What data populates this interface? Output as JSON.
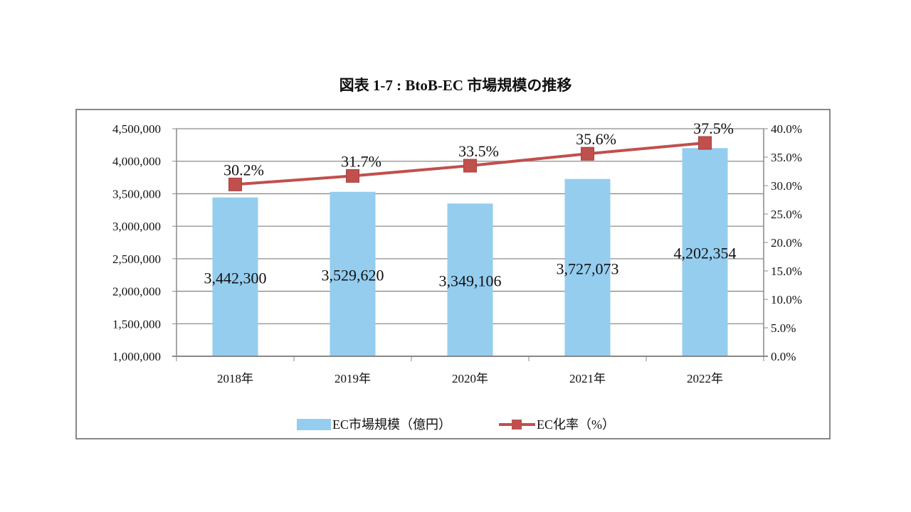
{
  "chart_data": {
    "type": "bar+line",
    "title": "図表 1-7 : BtoB-EC 市場規模の推移",
    "categories": [
      "2018年",
      "2019年",
      "2020年",
      "2021年",
      "2022年"
    ],
    "series": [
      {
        "name": "EC市場規模（億円）",
        "type": "bar",
        "axis": "left",
        "color": "#95CDEF",
        "values": [
          3442300,
          3529620,
          3349106,
          3727073,
          4202354
        ],
        "labels": [
          "3,442,300",
          "3,529,620",
          "3,349,106",
          "3,727,073",
          "4,202,354"
        ]
      },
      {
        "name": "EC化率（%）",
        "type": "line",
        "axis": "right",
        "color": "#C0504D",
        "marker": "square",
        "values": [
          30.2,
          31.7,
          33.5,
          35.6,
          37.5
        ],
        "labels": [
          "30.2%",
          "31.7%",
          "33.5%",
          "35.6%",
          "37.5%"
        ]
      }
    ],
    "left_axis": {
      "range": [
        1000000,
        4500000
      ],
      "ticks": [
        "1,000,000",
        "1,500,000",
        "2,000,000",
        "2,500,000",
        "3,000,000",
        "3,500,000",
        "4,000,000",
        "4,500,000"
      ]
    },
    "right_axis": {
      "range": [
        0,
        40
      ],
      "ticks": [
        "0.0%",
        "5.0%",
        "10.0%",
        "15.0%",
        "20.0%",
        "25.0%",
        "30.0%",
        "35.0%",
        "40.0%"
      ]
    },
    "grid": true,
    "legend": "bottom"
  }
}
